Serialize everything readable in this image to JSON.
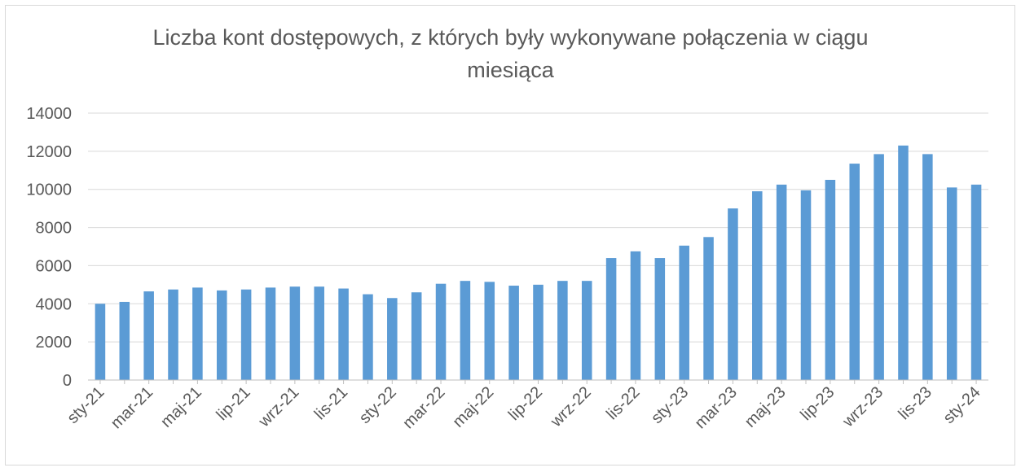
{
  "chart_data": {
    "type": "bar",
    "title_lines": [
      "Liczba kont dostępowych, z których były wykonywane połączenia w ciągu",
      "miesiąca"
    ],
    "xlabel": "",
    "ylabel": "",
    "ylim": [
      0,
      14000
    ],
    "yticks": [
      0,
      2000,
      4000,
      6000,
      8000,
      10000,
      12000,
      14000
    ],
    "grid": true,
    "legend": "none",
    "bar_color": "#5b9bd5",
    "xtick_labels": [
      "sty-21",
      "mar-21",
      "maj-21",
      "lip-21",
      "wrz-21",
      "lis-21",
      "sty-22",
      "mar-22",
      "maj-22",
      "lip-22",
      "wrz-22",
      "lis-22",
      "sty-23",
      "mar-23",
      "maj-23",
      "lip-23",
      "wrz-23",
      "lis-23",
      "sty-24"
    ],
    "categories": [
      "sty-21",
      "lut-21",
      "mar-21",
      "kwi-21",
      "maj-21",
      "cze-21",
      "lip-21",
      "sie-21",
      "wrz-21",
      "paź-21",
      "lis-21",
      "gru-21",
      "sty-22",
      "lut-22",
      "mar-22",
      "kwi-22",
      "maj-22",
      "cze-22",
      "lip-22",
      "sie-22",
      "wrz-22",
      "paź-22",
      "lis-22",
      "gru-22",
      "sty-23",
      "lut-23",
      "mar-23",
      "kwi-23",
      "maj-23",
      "cze-23",
      "lip-23",
      "sie-23",
      "wrz-23",
      "paź-23",
      "lis-23",
      "gru-23",
      "sty-24"
    ],
    "values": [
      4000,
      4100,
      4650,
      4750,
      4850,
      4700,
      4750,
      4850,
      4900,
      4900,
      4800,
      4500,
      4300,
      4600,
      5050,
      5200,
      5150,
      4950,
      5000,
      5200,
      5200,
      6400,
      6750,
      6400,
      7050,
      7500,
      9000,
      9900,
      10250,
      9950,
      10500,
      11350,
      11850,
      12300,
      11850,
      10100,
      10250
    ]
  }
}
